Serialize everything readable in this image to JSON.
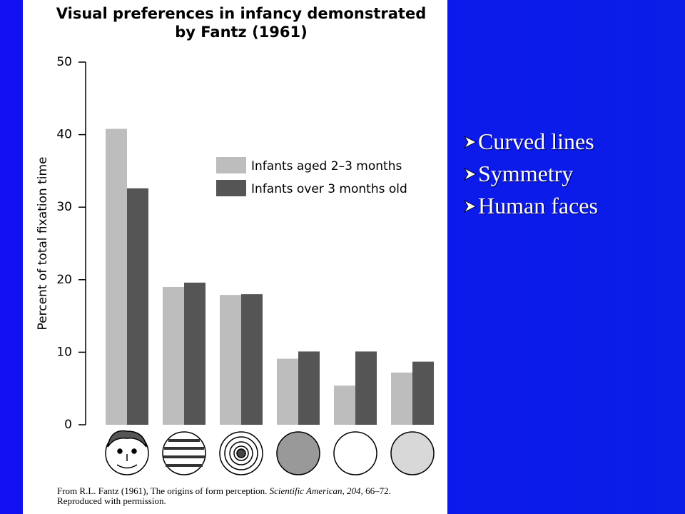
{
  "chart_data": {
    "type": "bar",
    "title": [
      "Visual preferences in infancy demonstrated",
      "by Fantz (1961)"
    ],
    "y_label": "Percent of total fixation time",
    "categories": [
      null,
      null,
      null,
      null,
      null,
      null
    ],
    "series": [
      {
        "name": "Infants aged 2–3 months",
        "color": "#bdbdbd",
        "values": [
          40.8,
          19,
          17.9,
          9.1,
          5.4,
          7.2
        ]
      },
      {
        "name": "Infants over 3 months old",
        "color": "#555555",
        "values": [
          32.6,
          19.6,
          18,
          10.1,
          10.1,
          8.7
        ]
      }
    ],
    "ylim": [
      0,
      50
    ],
    "yticks": [
      0,
      10,
      20,
      30,
      40,
      50
    ],
    "source": [
      "From R.L. Fantz (1961), The origins of form perception. ",
      "Scientific American, 204,",
      " 66–72.",
      "Reproduced with permission."
    ]
  },
  "bullets": [
    "Curved lines",
    "Symmetry",
    "Human faces"
  ]
}
